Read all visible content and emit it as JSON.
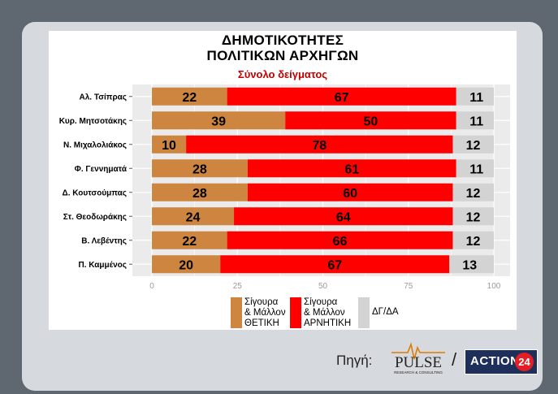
{
  "header": {
    "title_line1": "ΔΗΜΟΤΙΚΟΤΗΤΕΣ",
    "title_line2": "ΠΟΛΙΤΙΚΩΝ ΑΡΧΗΓΩΝ",
    "subtitle": "Σύνολο δείγματος"
  },
  "chart_data": {
    "type": "bar",
    "orientation": "horizontal",
    "stacked": true,
    "title": "ΔΗΜΟΤΙΚΟΤΗΤΕΣ ΠΟΛΙΤΙΚΩΝ ΑΡΧΗΓΩΝ",
    "subtitle": "Σύνολο δείγματος",
    "categories": [
      "Αλ. Τσίπρας",
      "Κυρ. Μητσοτάκης",
      "Ν. Μιχαλολιάκος",
      "Φ. Γεννηματά",
      "Δ. Κουτσούμπας",
      "Στ. Θεοδωράκης",
      "Β. Λεβέντης",
      "Π. Καμμένος"
    ],
    "series": [
      {
        "name": "Σίγουρα & Μάλλον ΘΕΤΙΚΗ",
        "color": "#cd853f",
        "values": [
          22,
          39,
          10,
          28,
          28,
          24,
          22,
          20
        ]
      },
      {
        "name": "Σίγουρα & Μάλλον ΑΡΝΗΤΙΚΗ",
        "color": "#ff0000",
        "values": [
          67,
          50,
          78,
          61,
          60,
          64,
          66,
          67
        ]
      },
      {
        "name": "ΔΓ/ΔΑ",
        "color": "#d3d3d3",
        "values": [
          11,
          11,
          12,
          11,
          12,
          12,
          12,
          13
        ]
      }
    ],
    "xlim": [
      0,
      100
    ],
    "xticks": [
      0,
      25,
      50,
      75,
      100
    ],
    "grid": true,
    "legend_position": "bottom"
  },
  "legend": {
    "items": [
      {
        "lines": [
          "Σίγουρα",
          "& Μάλλον",
          "ΘΕΤΙΚΗ"
        ]
      },
      {
        "lines": [
          "Σίγουρα",
          "& Μάλλον",
          "ΑΡΝΗΤΙΚΗ"
        ]
      },
      {
        "lines": [
          "ΔΓ/ΔΑ"
        ]
      }
    ]
  },
  "footer": {
    "source_label": "Πηγή:",
    "pulse_name": "PULSE",
    "pulse_tagline": "RESEARCH & CONSULTING",
    "separator": "/",
    "action_name": "ACTION",
    "action_number": "24"
  }
}
